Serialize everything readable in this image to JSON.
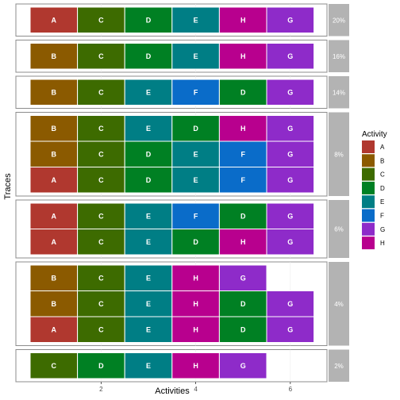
{
  "chart_data": {
    "type": "heatmap",
    "xlabel": "Activities",
    "ylabel": "Traces",
    "x_ticks": [
      2,
      4,
      6
    ],
    "legend": {
      "title": "Activity",
      "placement": "right",
      "items": [
        {
          "label": "A",
          "color": "#B0382F"
        },
        {
          "label": "B",
          "color": "#8B5A00"
        },
        {
          "label": "C",
          "color": "#3D6B00"
        },
        {
          "label": "D",
          "color": "#008023"
        },
        {
          "label": "E",
          "color": "#007E85"
        },
        {
          "label": "F",
          "color": "#0A6CC9"
        },
        {
          "label": "G",
          "color": "#8E2BC9"
        },
        {
          "label": "H",
          "color": "#B8008E"
        }
      ]
    },
    "panels": [
      {
        "label": "20%",
        "traces": [
          [
            "A",
            "C",
            "D",
            "E",
            "H",
            "G"
          ]
        ]
      },
      {
        "label": "16%",
        "traces": [
          [
            "B",
            "C",
            "D",
            "E",
            "H",
            "G"
          ]
        ]
      },
      {
        "label": "14%",
        "traces": [
          [
            "B",
            "C",
            "E",
            "F",
            "D",
            "G"
          ]
        ]
      },
      {
        "label": "8%",
        "traces": [
          [
            "B",
            "C",
            "E",
            "D",
            "H",
            "G"
          ],
          [
            "B",
            "C",
            "D",
            "E",
            "F",
            "G"
          ],
          [
            "A",
            "C",
            "D",
            "E",
            "F",
            "G"
          ]
        ]
      },
      {
        "label": "6%",
        "traces": [
          [
            "A",
            "C",
            "E",
            "F",
            "D",
            "G"
          ],
          [
            "A",
            "C",
            "E",
            "D",
            "H",
            "G"
          ]
        ]
      },
      {
        "label": "4%",
        "traces": [
          [
            "B",
            "C",
            "E",
            "H",
            "G"
          ],
          [
            "B",
            "C",
            "E",
            "H",
            "D",
            "G"
          ],
          [
            "A",
            "C",
            "E",
            "H",
            "D",
            "G"
          ]
        ]
      },
      {
        "label": "2%",
        "traces": [
          [
            "C",
            "D",
            "E",
            "H",
            "G"
          ]
        ]
      }
    ]
  }
}
